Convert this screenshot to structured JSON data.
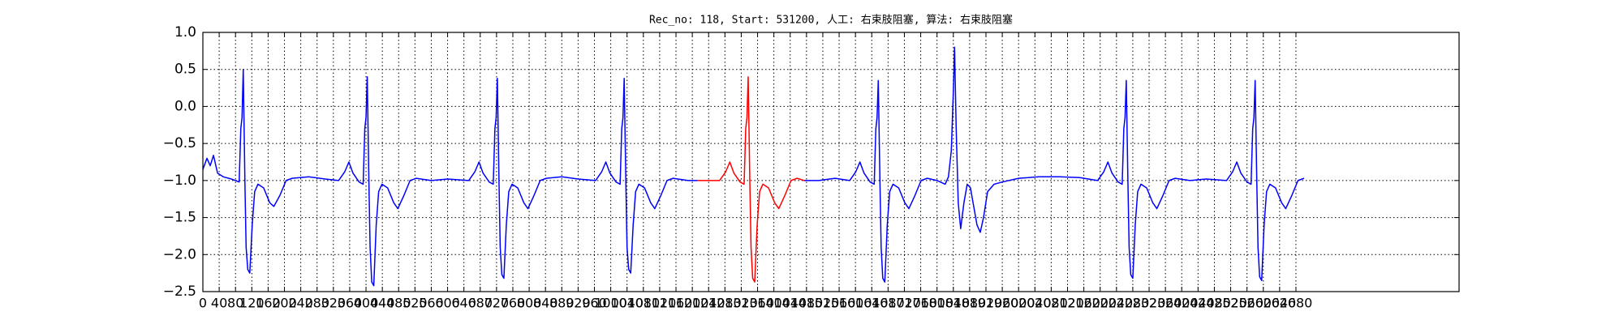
{
  "chart_data": {
    "type": "line",
    "title": "Rec_no: 118, Start: 531200, 人工: 右束肢阻塞, 算法: 右束肢阻塞",
    "xlim": [
      0,
      3080
    ],
    "ylim": [
      -2.5,
      1.0
    ],
    "xticks": [
      0,
      40,
      80,
      120,
      160,
      200,
      240,
      280,
      320,
      360,
      400,
      440,
      480,
      520,
      560,
      600,
      640,
      680,
      720,
      760,
      800,
      840,
      880,
      920,
      960,
      1000,
      1040,
      1080,
      1120,
      1160,
      1200,
      1240,
      1280,
      1320,
      1360,
      1400,
      1440,
      1480,
      1520,
      1560,
      1600,
      1640,
      1680,
      1720,
      1760,
      1800,
      1840,
      1880,
      1920,
      1960,
      2000,
      2040,
      2080,
      2120,
      2160,
      2200,
      2240,
      2280,
      2320,
      2360,
      2400,
      2440,
      2480,
      2520,
      2560,
      2600,
      2640,
      2680
    ],
    "yticks": [
      {
        "value": -2.5,
        "label": "−2.5"
      },
      {
        "value": -2.0,
        "label": "−2.0"
      },
      {
        "value": -1.5,
        "label": "−1.5"
      },
      {
        "value": -1.0,
        "label": "−1.0"
      },
      {
        "value": -0.5,
        "label": "−0.5"
      },
      {
        "value": 0.0,
        "label": "0.0"
      },
      0.5,
      {
        "value": 1.0,
        "label": "1.0"
      }
    ],
    "grid": true,
    "series": [
      {
        "color": "#0000ff",
        "x": [
          0,
          10,
          18,
          26,
          36,
          50,
          70,
          89,
          93,
          96,
          99,
          103,
          106,
          110,
          115,
          121,
          127,
          135,
          149,
          164,
          174,
          189,
          204,
          219,
          260,
          300,
          333,
          348,
          358,
          368,
          383,
          393,
          397,
          400,
          403,
          407,
          410,
          414,
          419,
          425,
          431,
          439,
          453,
          468,
          478,
          493,
          508,
          523,
          560,
          600,
          652,
          667,
          677,
          687,
          702,
          712,
          716,
          719,
          722,
          726,
          729,
          733,
          738,
          744,
          750,
          758,
          772,
          787,
          797,
          812,
          827,
          842,
          880,
          920,
          963,
          978,
          988,
          998,
          1013,
          1023,
          1027,
          1030,
          1033,
          1037,
          1040,
          1044,
          1049,
          1055,
          1061,
          1069,
          1083,
          1098,
          1108,
          1123,
          1138,
          1153,
          1190,
          1213,
          1240,
          1474,
          1510,
          1550,
          1586,
          1601,
          1611,
          1621,
          1636,
          1646,
          1650,
          1653,
          1656,
          1660,
          1663,
          1667,
          1672,
          1678,
          1684,
          1692,
          1706,
          1721,
          1731,
          1746,
          1761,
          1776,
          1800,
          1820,
          1828,
          1835,
          1840,
          1843,
          1847,
          1852,
          1858,
          1866,
          1874,
          1882,
          1890,
          1898,
          1906,
          1914,
          1924,
          1940,
          1960,
          2000,
          2050,
          2100,
          2150,
          2194,
          2209,
          2219,
          2229,
          2244,
          2254,
          2258,
          2261,
          2264,
          2268,
          2271,
          2275,
          2280,
          2286,
          2292,
          2300,
          2314,
          2329,
          2339,
          2354,
          2369,
          2384,
          2420,
          2460,
          2510,
          2525,
          2535,
          2545,
          2560,
          2570,
          2574,
          2577,
          2580,
          2584,
          2587,
          2591,
          2596,
          2602,
          2608,
          2616,
          2630,
          2645,
          2655,
          2670,
          2685,
          2700
        ],
        "values": [
          -0.85,
          -0.7,
          -0.8,
          -0.66,
          -0.9,
          -0.95,
          -0.98,
          -1.02,
          -0.3,
          -0.15,
          0.5,
          -1.0,
          -1.9,
          -2.2,
          -2.25,
          -1.6,
          -1.15,
          -1.05,
          -1.1,
          -1.3,
          -1.35,
          -1.2,
          -1.0,
          -0.97,
          -0.95,
          -0.98,
          -1.0,
          -0.88,
          -0.75,
          -0.9,
          -1.02,
          -1.05,
          -0.3,
          -0.15,
          0.4,
          -1.0,
          -1.9,
          -2.37,
          -2.42,
          -1.6,
          -1.15,
          -1.05,
          -1.1,
          -1.3,
          -1.38,
          -1.2,
          -1.0,
          -0.97,
          -1.0,
          -0.98,
          -1.0,
          -0.88,
          -0.75,
          -0.9,
          -1.02,
          -1.05,
          -0.3,
          -0.15,
          0.38,
          -1.0,
          -1.9,
          -2.27,
          -2.32,
          -1.6,
          -1.15,
          -1.05,
          -1.1,
          -1.3,
          -1.38,
          -1.2,
          -1.0,
          -0.97,
          -0.95,
          -0.98,
          -1.0,
          -0.88,
          -0.75,
          -0.9,
          -1.02,
          -1.05,
          -0.3,
          -0.15,
          0.38,
          -1.0,
          -1.9,
          -2.2,
          -2.25,
          -1.6,
          -1.15,
          -1.05,
          -1.1,
          -1.3,
          -1.38,
          -1.2,
          -1.0,
          -0.97,
          -1.0,
          -1.0,
          null,
          -1.0,
          -1.0,
          -0.97,
          -1.0,
          -0.88,
          -0.75,
          -0.9,
          -1.02,
          -1.05,
          -0.3,
          -0.15,
          0.35,
          -1.0,
          -1.9,
          -2.32,
          -2.37,
          -1.6,
          -1.15,
          -1.05,
          -1.1,
          -1.3,
          -1.38,
          -1.2,
          -1.0,
          -0.97,
          -1.0,
          -1.05,
          -0.95,
          -0.6,
          0.2,
          0.8,
          -0.3,
          -1.3,
          -1.65,
          -1.3,
          -1.05,
          -1.1,
          -1.35,
          -1.6,
          -1.7,
          -1.5,
          -1.15,
          -1.05,
          -1.02,
          -0.97,
          -0.95,
          -0.95,
          -0.96,
          -1.0,
          -0.88,
          -0.75,
          -0.9,
          -1.02,
          -1.05,
          -0.3,
          -0.15,
          0.35,
          -1.0,
          -1.9,
          -2.27,
          -2.32,
          -1.6,
          -1.15,
          -1.05,
          -1.1,
          -1.3,
          -1.38,
          -1.2,
          -1.0,
          -0.97,
          -1.0,
          -0.98,
          -1.0,
          -0.88,
          -0.75,
          -0.9,
          -1.02,
          -1.05,
          -0.3,
          -0.15,
          0.35,
          -1.0,
          -1.9,
          -2.3,
          -2.35,
          -1.6,
          -1.15,
          -1.05,
          -1.1,
          -1.3,
          -1.38,
          -1.2,
          -1.0,
          -0.97
        ]
      },
      {
        "color": "#ff0000",
        "x": [
          1213,
          1240,
          1267,
          1282,
          1292,
          1302,
          1317,
          1327,
          1331,
          1334,
          1337,
          1341,
          1344,
          1348,
          1353,
          1359,
          1365,
          1373,
          1387,
          1402,
          1412,
          1427,
          1442,
          1457,
          1474
        ],
        "values": [
          -1.0,
          -1.0,
          -1.0,
          -0.88,
          -0.75,
          -0.9,
          -1.02,
          -1.05,
          -0.3,
          -0.15,
          0.4,
          -1.0,
          -1.9,
          -2.32,
          -2.37,
          -1.6,
          -1.15,
          -1.05,
          -1.1,
          -1.3,
          -1.38,
          -1.2,
          -1.0,
          -0.97,
          -1.0
        ]
      }
    ]
  }
}
